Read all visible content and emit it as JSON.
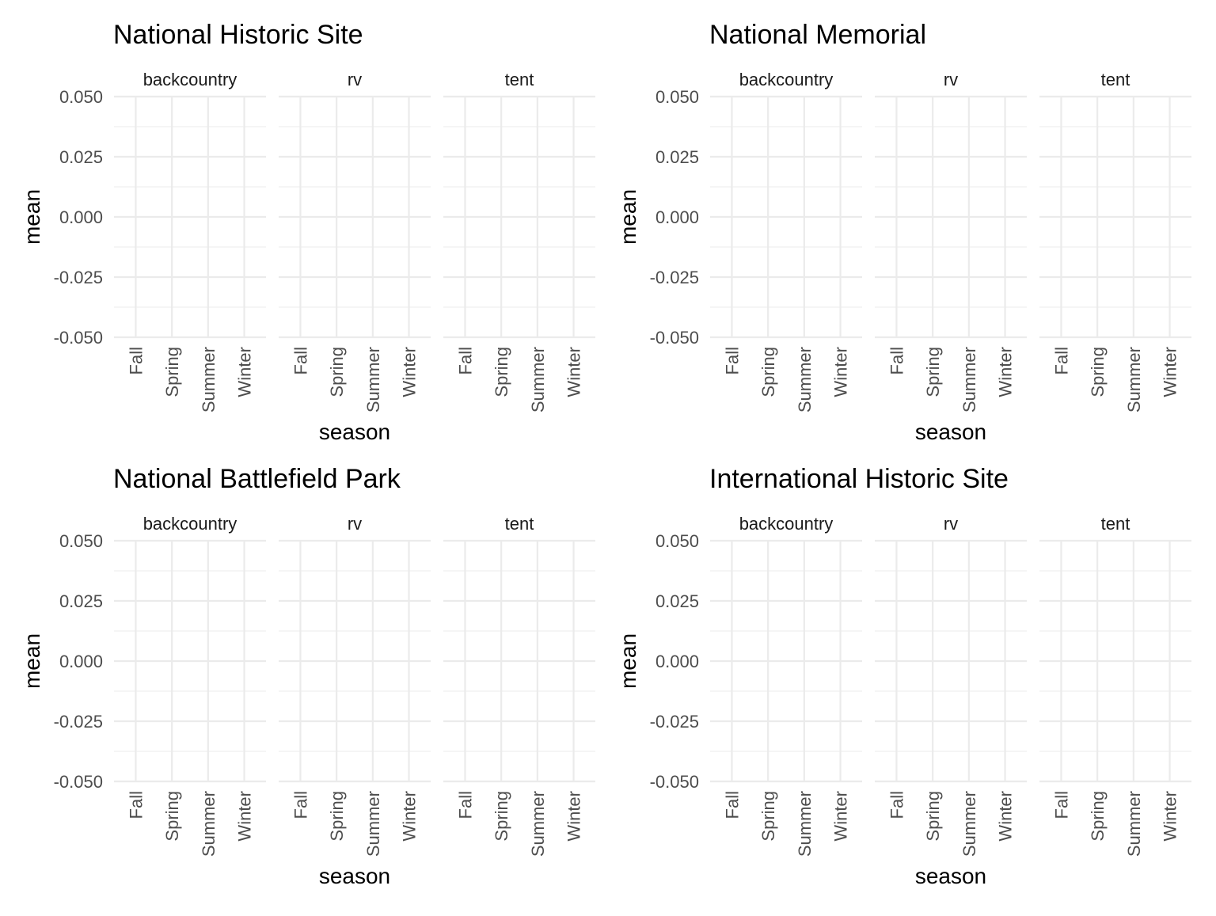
{
  "chart_data": [
    {
      "type": "bar",
      "title": "National Historic Site",
      "xlabel": "season",
      "ylabel": "mean",
      "facets": [
        "backcountry",
        "rv",
        "tent"
      ],
      "categories": [
        "Fall",
        "Spring",
        "Summer",
        "Winter"
      ],
      "ylim": [
        -0.05,
        0.05
      ],
      "yticks": [
        -0.05,
        -0.025,
        0,
        0.025,
        0.05
      ],
      "ytick_labels": [
        "-0.050",
        "-0.025",
        "0.000",
        "0.025",
        "0.050"
      ],
      "series": [],
      "grid": true,
      "legend": "none"
    },
    {
      "type": "bar",
      "title": "National Memorial",
      "xlabel": "season",
      "ylabel": "mean",
      "facets": [
        "backcountry",
        "rv",
        "tent"
      ],
      "categories": [
        "Fall",
        "Spring",
        "Summer",
        "Winter"
      ],
      "ylim": [
        -0.05,
        0.05
      ],
      "yticks": [
        -0.05,
        -0.025,
        0,
        0.025,
        0.05
      ],
      "ytick_labels": [
        "-0.050",
        "-0.025",
        "0.000",
        "0.025",
        "0.050"
      ],
      "series": [],
      "grid": true,
      "legend": "none"
    },
    {
      "type": "bar",
      "title": "National Battlefield Park",
      "xlabel": "season",
      "ylabel": "mean",
      "facets": [
        "backcountry",
        "rv",
        "tent"
      ],
      "categories": [
        "Fall",
        "Spring",
        "Summer",
        "Winter"
      ],
      "ylim": [
        -0.05,
        0.05
      ],
      "yticks": [
        -0.05,
        -0.025,
        0,
        0.025,
        0.05
      ],
      "ytick_labels": [
        "-0.050",
        "-0.025",
        "0.000",
        "0.025",
        "0.050"
      ],
      "series": [],
      "grid": true,
      "legend": "none"
    },
    {
      "type": "bar",
      "title": "International Historic Site",
      "xlabel": "season",
      "ylabel": "mean",
      "facets": [
        "backcountry",
        "rv",
        "tent"
      ],
      "categories": [
        "Fall",
        "Spring",
        "Summer",
        "Winter"
      ],
      "ylim": [
        -0.05,
        0.05
      ],
      "yticks": [
        -0.05,
        -0.025,
        0,
        0.025,
        0.05
      ],
      "ytick_labels": [
        "-0.050",
        "-0.025",
        "0.000",
        "0.025",
        "0.050"
      ],
      "series": [],
      "grid": true,
      "legend": "none"
    }
  ],
  "colors": {
    "background": "#ffffff",
    "grid": "#ebebeb",
    "tick_text": "#4d4d4d",
    "strip_text": "#1a1a1a",
    "title_text": "#000000"
  }
}
